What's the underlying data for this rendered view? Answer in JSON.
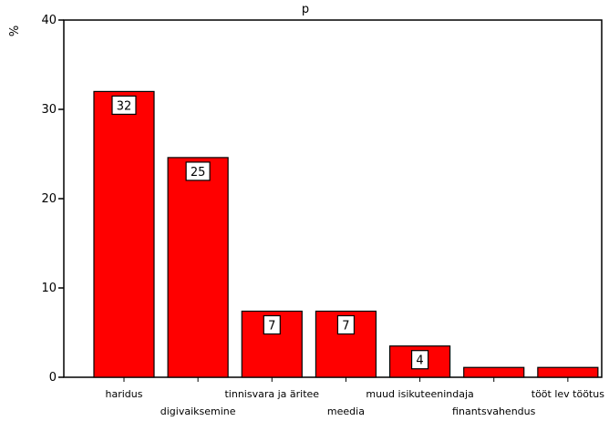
{
  "chart_data": {
    "type": "bar",
    "title": "p",
    "ylabel": "%",
    "ylim": [
      0,
      40
    ],
    "yticks": [
      0,
      10,
      20,
      30,
      40
    ],
    "categories": [
      "haridus",
      "digivaiksemine",
      "tinnisvara ja äritee",
      "meedia",
      "muud isikuteenindaja",
      "finantsvahendus",
      "tööt lev töötus"
    ],
    "values": [
      32,
      24.6,
      7.4,
      7.4,
      3.5,
      1.1,
      1.1
    ],
    "data_labels": [
      "32",
      "25",
      "7",
      "7",
      "4",
      "",
      ""
    ],
    "grid": false,
    "legend": "none",
    "bar_color": "#ff0000",
    "bar_edge_color": "#000000",
    "background": "#ffffff"
  }
}
